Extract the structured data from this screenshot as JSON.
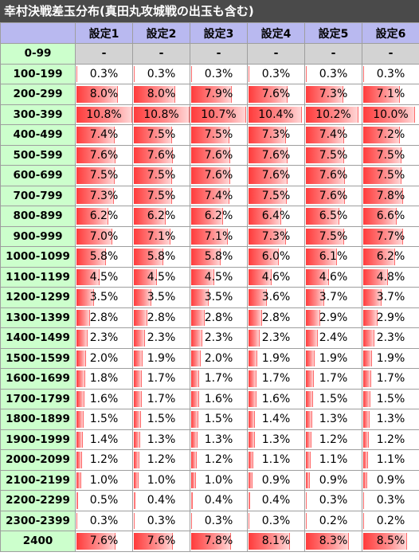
{
  "title": "幸村決戦差玉分布(真田丸攻城戦の出玉も含む)",
  "columns": [
    "設定1",
    "設定2",
    "設定3",
    "設定4",
    "設定5",
    "設定6"
  ],
  "rows": [
    {
      "range": "0-99",
      "values": [
        "-",
        "-",
        "-",
        "-",
        "-",
        "-"
      ]
    },
    {
      "range": "100-199",
      "values": [
        "0.3%",
        "0.3%",
        "0.3%",
        "0.3%",
        "0.3%",
        "0.3%"
      ]
    },
    {
      "range": "200-299",
      "values": [
        "8.0%",
        "8.0%",
        "7.9%",
        "7.6%",
        "7.3%",
        "7.1%"
      ]
    },
    {
      "range": "300-399",
      "values": [
        "10.8%",
        "10.8%",
        "10.7%",
        "10.4%",
        "10.2%",
        "10.0%"
      ]
    },
    {
      "range": "400-499",
      "values": [
        "7.4%",
        "7.5%",
        "7.5%",
        "7.3%",
        "7.4%",
        "7.2%"
      ]
    },
    {
      "range": "500-599",
      "values": [
        "7.6%",
        "7.6%",
        "7.6%",
        "7.6%",
        "7.5%",
        "7.5%"
      ]
    },
    {
      "range": "600-699",
      "values": [
        "7.5%",
        "7.5%",
        "7.6%",
        "7.6%",
        "7.6%",
        "7.5%"
      ]
    },
    {
      "range": "700-799",
      "values": [
        "7.3%",
        "7.5%",
        "7.4%",
        "7.5%",
        "7.6%",
        "7.8%"
      ]
    },
    {
      "range": "800-899",
      "values": [
        "6.2%",
        "6.2%",
        "6.2%",
        "6.4%",
        "6.5%",
        "6.6%"
      ]
    },
    {
      "range": "900-999",
      "values": [
        "7.0%",
        "7.1%",
        "7.1%",
        "7.3%",
        "7.5%",
        "7.7%"
      ]
    },
    {
      "range": "1000-1099",
      "values": [
        "5.8%",
        "5.8%",
        "5.8%",
        "6.0%",
        "6.1%",
        "6.2%"
      ]
    },
    {
      "range": "1100-1199",
      "values": [
        "4.5%",
        "4.5%",
        "4.5%",
        "4.6%",
        "4.6%",
        "4.8%"
      ]
    },
    {
      "range": "1200-1299",
      "values": [
        "3.5%",
        "3.5%",
        "3.5%",
        "3.6%",
        "3.7%",
        "3.7%"
      ]
    },
    {
      "range": "1300-1399",
      "values": [
        "2.8%",
        "2.8%",
        "2.8%",
        "2.8%",
        "2.9%",
        "2.9%"
      ]
    },
    {
      "range": "1400-1499",
      "values": [
        "2.3%",
        "2.3%",
        "2.3%",
        "2.3%",
        "2.4%",
        "2.3%"
      ]
    },
    {
      "range": "1500-1599",
      "values": [
        "2.0%",
        "1.9%",
        "2.0%",
        "1.9%",
        "1.9%",
        "1.9%"
      ]
    },
    {
      "range": "1600-1699",
      "values": [
        "1.8%",
        "1.7%",
        "1.7%",
        "1.7%",
        "1.7%",
        "1.7%"
      ]
    },
    {
      "range": "1700-1799",
      "values": [
        "1.6%",
        "1.7%",
        "1.6%",
        "1.6%",
        "1.5%",
        "1.5%"
      ]
    },
    {
      "range": "1800-1899",
      "values": [
        "1.5%",
        "1.5%",
        "1.5%",
        "1.4%",
        "1.3%",
        "1.3%"
      ]
    },
    {
      "range": "1900-1999",
      "values": [
        "1.4%",
        "1.3%",
        "1.3%",
        "1.3%",
        "1.2%",
        "1.2%"
      ]
    },
    {
      "range": "2000-2099",
      "values": [
        "1.2%",
        "1.2%",
        "1.2%",
        "1.1%",
        "1.1%",
        "1.1%"
      ]
    },
    {
      "range": "2100-2199",
      "values": [
        "1.0%",
        "1.0%",
        "1.0%",
        "0.9%",
        "0.9%",
        "0.9%"
      ]
    },
    {
      "range": "2200-2299",
      "values": [
        "0.5%",
        "0.4%",
        "0.4%",
        "0.4%",
        "0.3%",
        "0.3%"
      ]
    },
    {
      "range": "2300-2399",
      "values": [
        "0.3%",
        "0.3%",
        "0.3%",
        "0.3%",
        "0.2%",
        "0.2%"
      ]
    },
    {
      "range": "2400",
      "values": [
        "7.6%",
        "7.6%",
        "7.8%",
        "8.1%",
        "8.3%",
        "8.5%"
      ]
    }
  ],
  "bar_max_percent": 10.8,
  "colors": {
    "title_bg": "#4a4a4a",
    "header_bg": "#b9b9f0",
    "range_bg": "#ccffcc",
    "dash_bg": "#d3d3d3",
    "bar": "#ff3b3b"
  }
}
